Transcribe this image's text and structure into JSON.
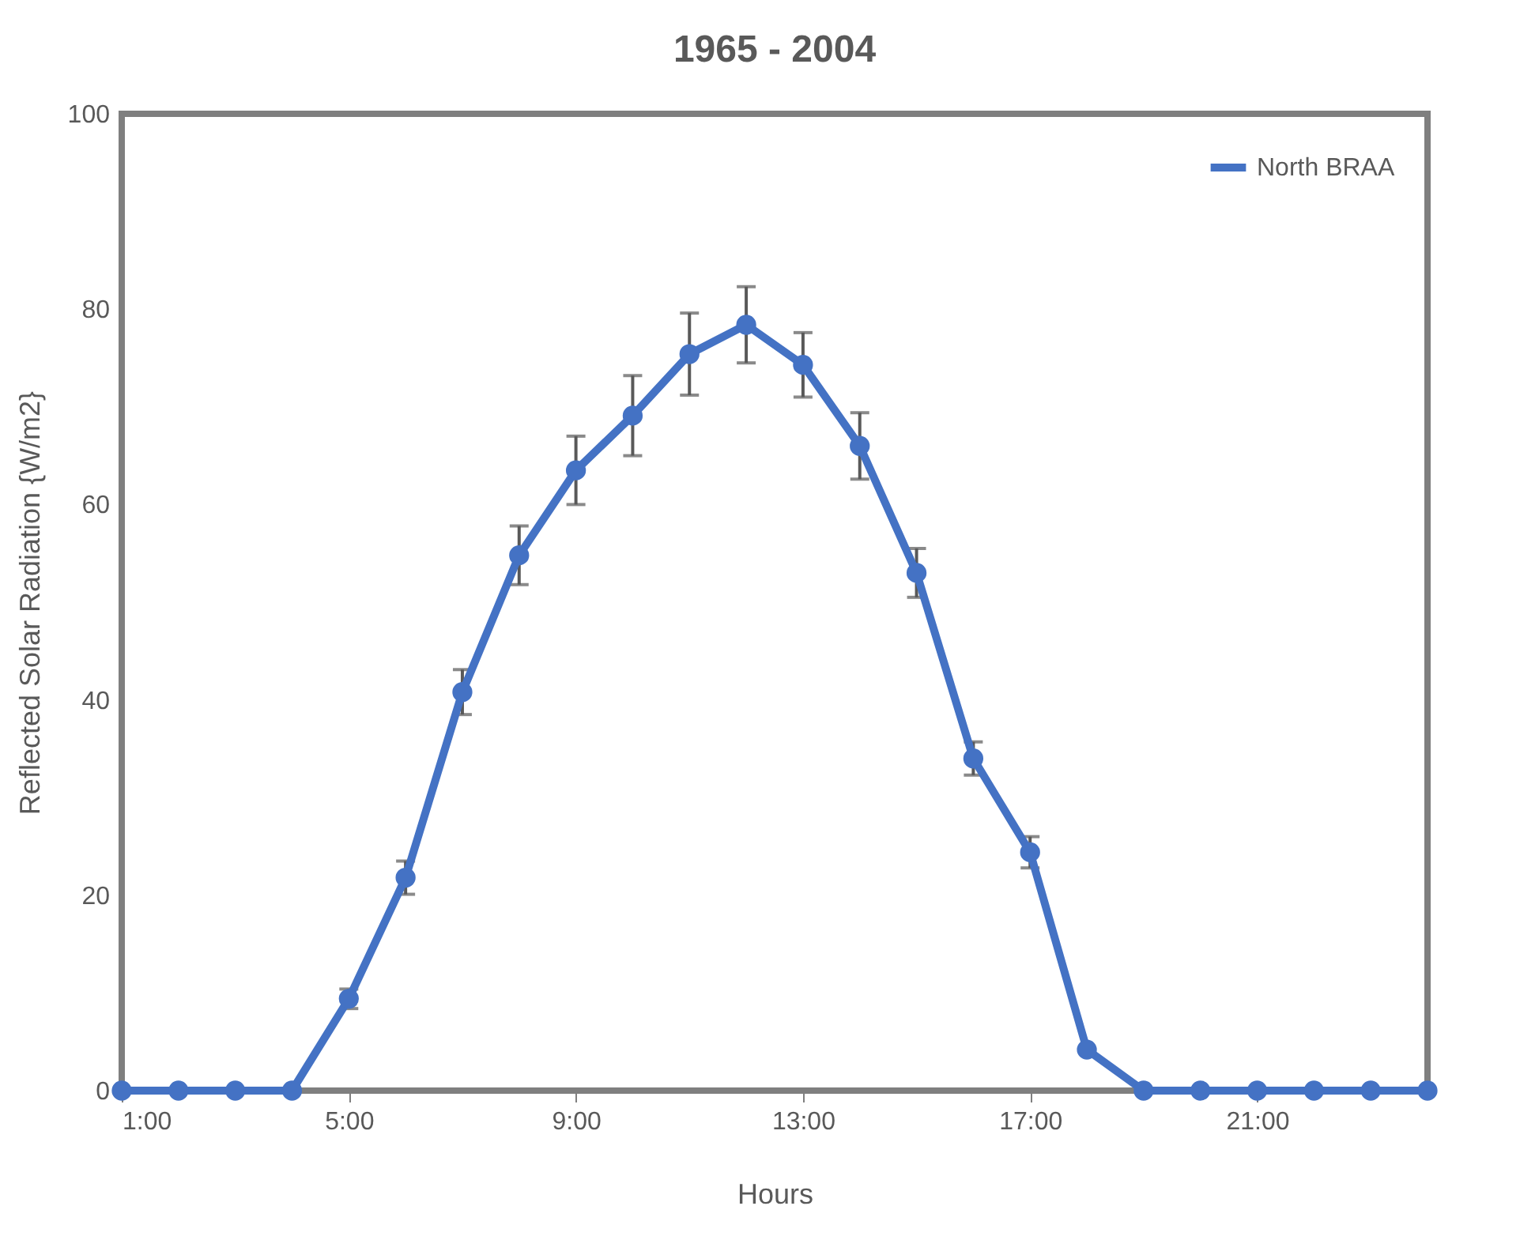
{
  "chart_data": {
    "type": "line",
    "title": "1965 - 2004",
    "xlabel": "Hours",
    "ylabel": "Reflected Solar Radiation {W/m2}",
    "x": [
      1,
      2,
      3,
      4,
      5,
      6,
      7,
      8,
      9,
      10,
      11,
      12,
      13,
      14,
      15,
      16,
      17,
      18,
      19,
      20,
      21,
      22,
      23,
      24
    ],
    "series": [
      {
        "name": "North BRAA",
        "color": "#4472c4",
        "values": [
          0,
          0,
          0,
          0,
          9.4,
          21.8,
          40.8,
          54.8,
          63.5,
          69.1,
          75.4,
          78.4,
          74.3,
          66,
          53,
          34,
          24.4,
          4.2,
          0,
          0,
          0,
          0,
          0,
          0
        ],
        "errors": [
          null,
          null,
          null,
          null,
          1,
          1.7,
          2.3,
          3,
          3.5,
          4.1,
          4.2,
          3.9,
          3.3,
          3.4,
          2.5,
          1.7,
          1.6,
          null,
          null,
          null,
          null,
          null,
          null,
          null
        ]
      }
    ],
    "xlim": [
      1,
      24
    ],
    "xticks": [
      {
        "value": 1,
        "label": "1:00"
      },
      {
        "value": 5,
        "label": "5:00"
      },
      {
        "value": 9,
        "label": "9:00"
      },
      {
        "value": 13,
        "label": "13:00"
      },
      {
        "value": 17,
        "label": "17:00"
      },
      {
        "value": 21,
        "label": "21:00"
      }
    ],
    "ylim": [
      0,
      100
    ],
    "yticks": [
      0,
      20,
      40,
      60,
      80,
      100
    ],
    "grid": false,
    "legend": "top right",
    "marker": "circle",
    "line_style": "solid"
  }
}
